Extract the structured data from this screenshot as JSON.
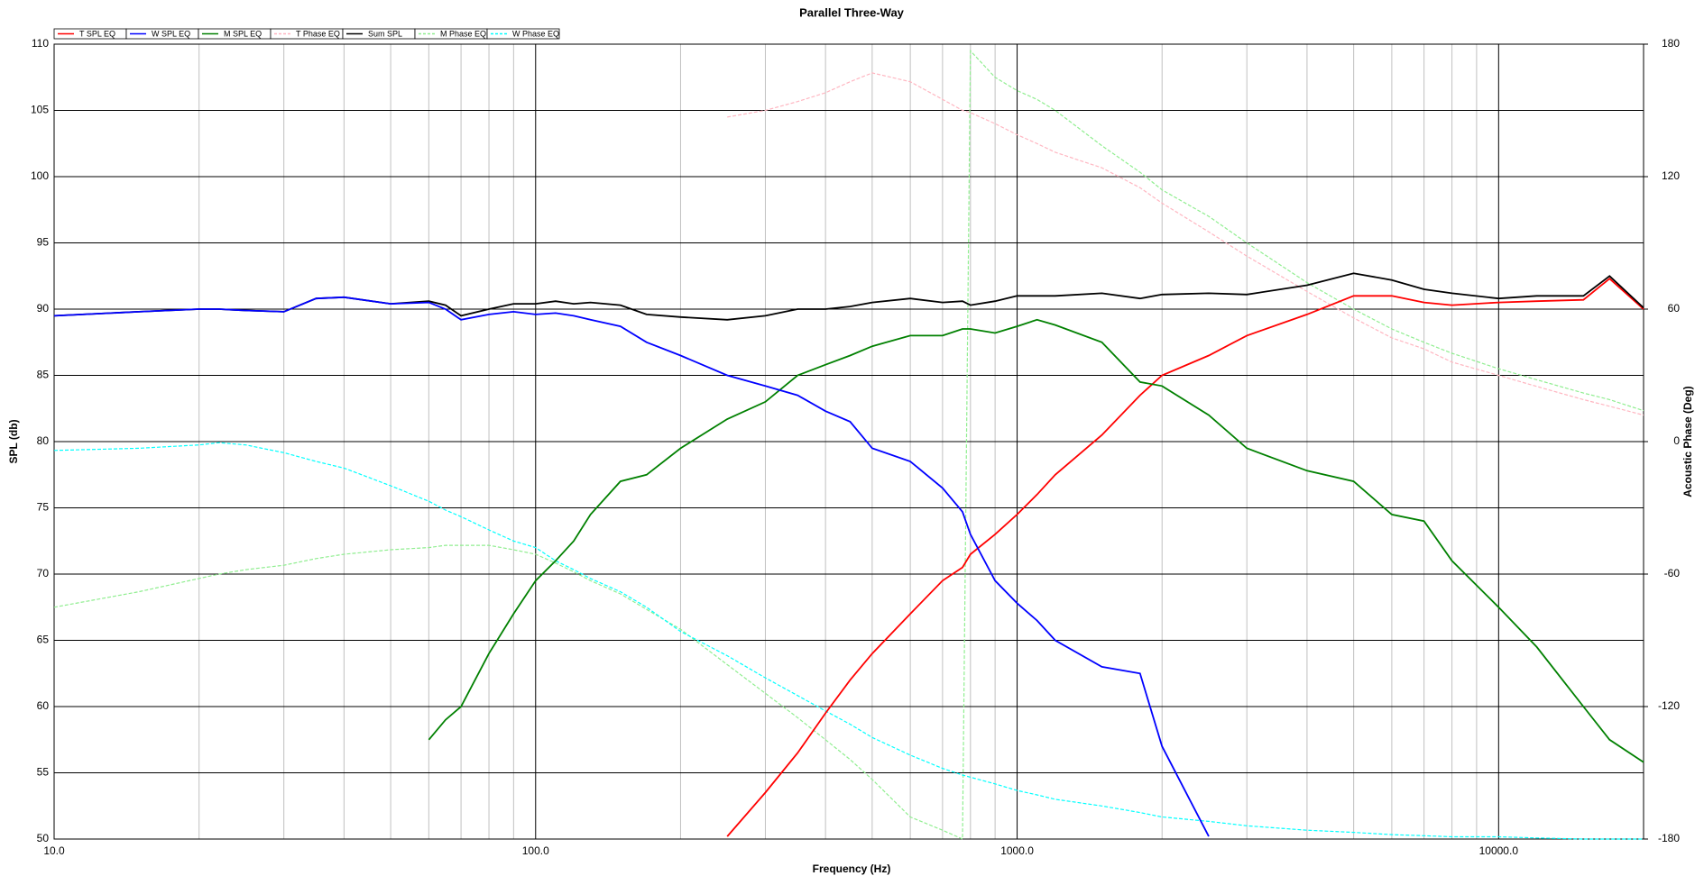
{
  "chart_data": {
    "type": "line",
    "title": "Parallel Three-Way",
    "xlabel": "Frequency (Hz)",
    "ylabel": "SPL (db)",
    "y2label": "Acoustic Phase (Deg)",
    "xscale": "log",
    "grid": true,
    "xlim": [
      10,
      20000
    ],
    "xticks": [
      {
        "value": 10,
        "label": "10.0"
      },
      {
        "value": 100,
        "label": "100.0"
      },
      {
        "value": 1000,
        "label": "1000.0"
      },
      {
        "value": 10000,
        "label": "10000.0"
      }
    ],
    "ylim": [
      50,
      110
    ],
    "yticks": [
      50,
      55,
      60,
      65,
      70,
      75,
      80,
      85,
      90,
      95,
      100,
      105,
      110
    ],
    "y2lim": [
      -180,
      180
    ],
    "y2ticks": [
      -180,
      -120,
      -60,
      0,
      60,
      120,
      180
    ],
    "x": [
      10,
      15,
      20,
      22,
      25,
      30,
      35,
      40,
      50,
      60,
      65,
      70,
      80,
      90,
      100,
      110,
      120,
      130,
      150,
      170,
      200,
      250,
      300,
      350,
      400,
      450,
      500,
      600,
      700,
      770,
      800,
      900,
      1000,
      1100,
      1200,
      1500,
      1800,
      2000,
      2500,
      3000,
      4000,
      5000,
      6000,
      7000,
      8000,
      10000,
      12000,
      15000,
      17000,
      20000
    ],
    "series": [
      {
        "name": "T SPL EQ",
        "color": "#ff0000",
        "dashed": false,
        "values": [
          null,
          null,
          null,
          null,
          null,
          null,
          null,
          null,
          null,
          null,
          null,
          null,
          null,
          null,
          null,
          null,
          null,
          null,
          null,
          null,
          null,
          50.2,
          53.5,
          56.5,
          59.5,
          62,
          64,
          67,
          69.5,
          70.5,
          71.5,
          73,
          74.5,
          76,
          77.5,
          80.5,
          83.5,
          85,
          86.5,
          88,
          89.6,
          91,
          91,
          90.5,
          90.3,
          90.5,
          90.6,
          90.7,
          92.3,
          90
        ]
      },
      {
        "name": "W SPL EQ",
        "color": "#0000ff",
        "dashed": false,
        "values": [
          89.5,
          89.8,
          90,
          90,
          89.9,
          89.8,
          90.8,
          90.9,
          90.4,
          90.5,
          90,
          89.2,
          89.6,
          89.8,
          89.6,
          89.7,
          89.5,
          89.2,
          88.7,
          87.5,
          86.5,
          85,
          84.2,
          83.5,
          82.3,
          81.5,
          79.5,
          78.5,
          76.5,
          74.7,
          73,
          69.5,
          67.8,
          66.5,
          65,
          63,
          62.5,
          57,
          50.2,
          null,
          null,
          null,
          null,
          null,
          null,
          null,
          null,
          null,
          null,
          null
        ]
      },
      {
        "name": "M SPL EQ",
        "color": "#008000",
        "dashed": false,
        "values": [
          null,
          null,
          null,
          null,
          null,
          null,
          null,
          null,
          null,
          57.5,
          59,
          60,
          64,
          67,
          69.5,
          71,
          72.5,
          74.5,
          77,
          77.5,
          79.5,
          81.7,
          83,
          85,
          85.8,
          86.5,
          87.2,
          88,
          88,
          88.5,
          88.5,
          88.2,
          88.7,
          89.2,
          88.8,
          87.5,
          84.5,
          84.2,
          82,
          79.5,
          77.8,
          77,
          74.5,
          74,
          71,
          67.5,
          64.5,
          60,
          57.5,
          55.8
        ]
      },
      {
        "name": "T Phase EQ",
        "color": "#ffb6c1",
        "dashed": true,
        "axis": "y2",
        "values": [
          null,
          null,
          null,
          null,
          null,
          null,
          null,
          null,
          null,
          null,
          null,
          null,
          null,
          null,
          null,
          null,
          null,
          null,
          null,
          null,
          null,
          147,
          150,
          154,
          158,
          163,
          167,
          163,
          155,
          150,
          149,
          144,
          139,
          135,
          131,
          124,
          115,
          108,
          95,
          84,
          68,
          56,
          47,
          42,
          36,
          30,
          25,
          19,
          16,
          12
        ]
      },
      {
        "name": "Sum SPL",
        "color": "#000000",
        "dashed": false,
        "values": [
          89.5,
          89.8,
          90,
          90,
          89.9,
          89.8,
          90.8,
          90.9,
          90.4,
          90.6,
          90.3,
          89.5,
          90,
          90.4,
          90.4,
          90.6,
          90.4,
          90.5,
          90.3,
          89.6,
          89.4,
          89.2,
          89.5,
          90,
          90,
          90.2,
          90.5,
          90.8,
          90.5,
          90.6,
          90.3,
          90.6,
          91,
          91,
          91,
          91.2,
          90.8,
          91.1,
          91.2,
          91.1,
          91.8,
          92.7,
          92.2,
          91.5,
          91.2,
          90.8,
          91,
          91,
          92.5,
          90.1
        ]
      },
      {
        "name": "M Phase EQ",
        "color": "#90ee90",
        "dashed": true,
        "axis": "y2",
        "values": [
          -75,
          -68,
          -62,
          -60,
          -58,
          -56,
          -53,
          -51,
          -49,
          -48,
          -47,
          -47,
          -47,
          -49,
          -51,
          -55,
          -59,
          -63,
          -69,
          -76,
          -85,
          -101,
          -114,
          -125,
          -135,
          -144,
          -153,
          -170,
          -176,
          -180,
          177,
          165,
          159,
          155,
          150,
          134,
          122,
          114,
          102,
          90,
          72,
          60,
          51,
          45,
          40,
          33,
          28,
          22,
          19,
          14
        ]
      },
      {
        "name": "W Phase EQ",
        "color": "#00ffff",
        "dashed": true,
        "axis": "y2",
        "values": [
          -4,
          -3,
          -1.5,
          -0.5,
          -1.5,
          -5,
          -9,
          -12,
          -20,
          -27,
          -31,
          -34,
          -40,
          -45,
          -48,
          -54,
          -58,
          -62,
          -68,
          -75,
          -86,
          -97,
          -107,
          -115,
          -122,
          -128,
          -134,
          -142,
          -148,
          -151,
          -152,
          -155,
          -158,
          -160,
          -162,
          -165,
          -168,
          -170,
          -172,
          -174,
          -176,
          -177,
          -178,
          -178.5,
          -179,
          -179,
          -179.5,
          -180,
          -180,
          -180
        ]
      }
    ]
  }
}
